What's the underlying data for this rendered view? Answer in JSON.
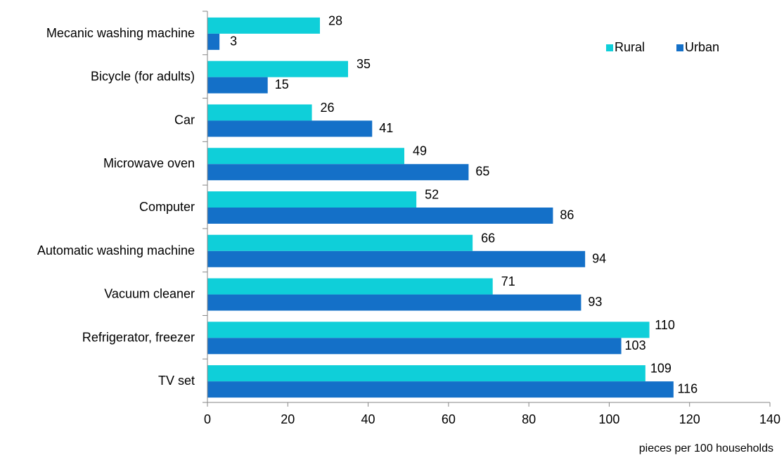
{
  "chart_data": {
    "type": "bar",
    "orientation": "horizontal",
    "categories": [
      "Mecanic washing machine",
      "Bicycle (for adults)",
      "Car",
      "Microwave oven",
      "Computer",
      "Automatic washing machine",
      "Vacuum cleaner",
      "Refrigerator, freezer",
      "TV set"
    ],
    "series": [
      {
        "name": "Rural",
        "color": "#0fcfd9",
        "values": [
          28,
          35,
          26,
          49,
          52,
          66,
          71,
          110,
          109
        ]
      },
      {
        "name": "Urban",
        "color": "#1470c8",
        "values": [
          3,
          15,
          41,
          65,
          86,
          94,
          93,
          103,
          116
        ]
      }
    ],
    "xlim": [
      0,
      140
    ],
    "xticks": [
      0,
      20,
      40,
      60,
      80,
      100,
      120,
      140
    ],
    "xlabel": "pieces per 100 households",
    "ylabel": "",
    "title": "",
    "grid": false,
    "legend_position": "top-right",
    "data_labels": true
  }
}
